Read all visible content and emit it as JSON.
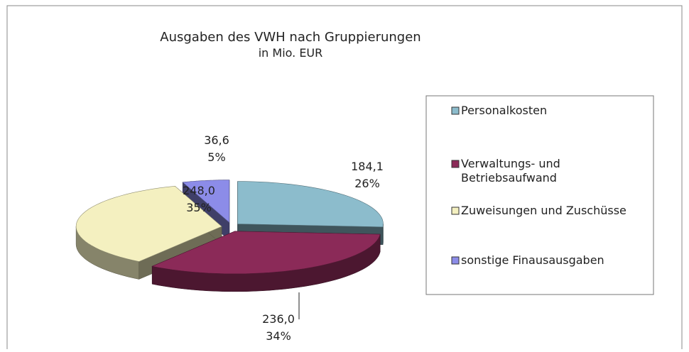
{
  "chart_data": {
    "type": "pie",
    "title": "Ausgaben des VWH nach Gruppierungen",
    "subtitle": "in Mio. EUR",
    "categories": [
      "Personalkosten",
      "Verwaltungs- und Betriebsaufwand",
      "Zuweisungen und Zuschüsse",
      "sonstige Finausausgaben"
    ],
    "values": [
      184.1,
      236.0,
      248.0,
      36.6
    ],
    "value_labels": [
      "184,1",
      "236,0",
      "248,0",
      "36,6"
    ],
    "percent_labels": [
      "26%",
      "34%",
      "35%",
      "5%"
    ],
    "colors": [
      "#8cbccc",
      "#8b2a58",
      "#f4f0c0",
      "#8c8ce8"
    ],
    "legend": "right",
    "three_d": true,
    "exploded": true
  }
}
